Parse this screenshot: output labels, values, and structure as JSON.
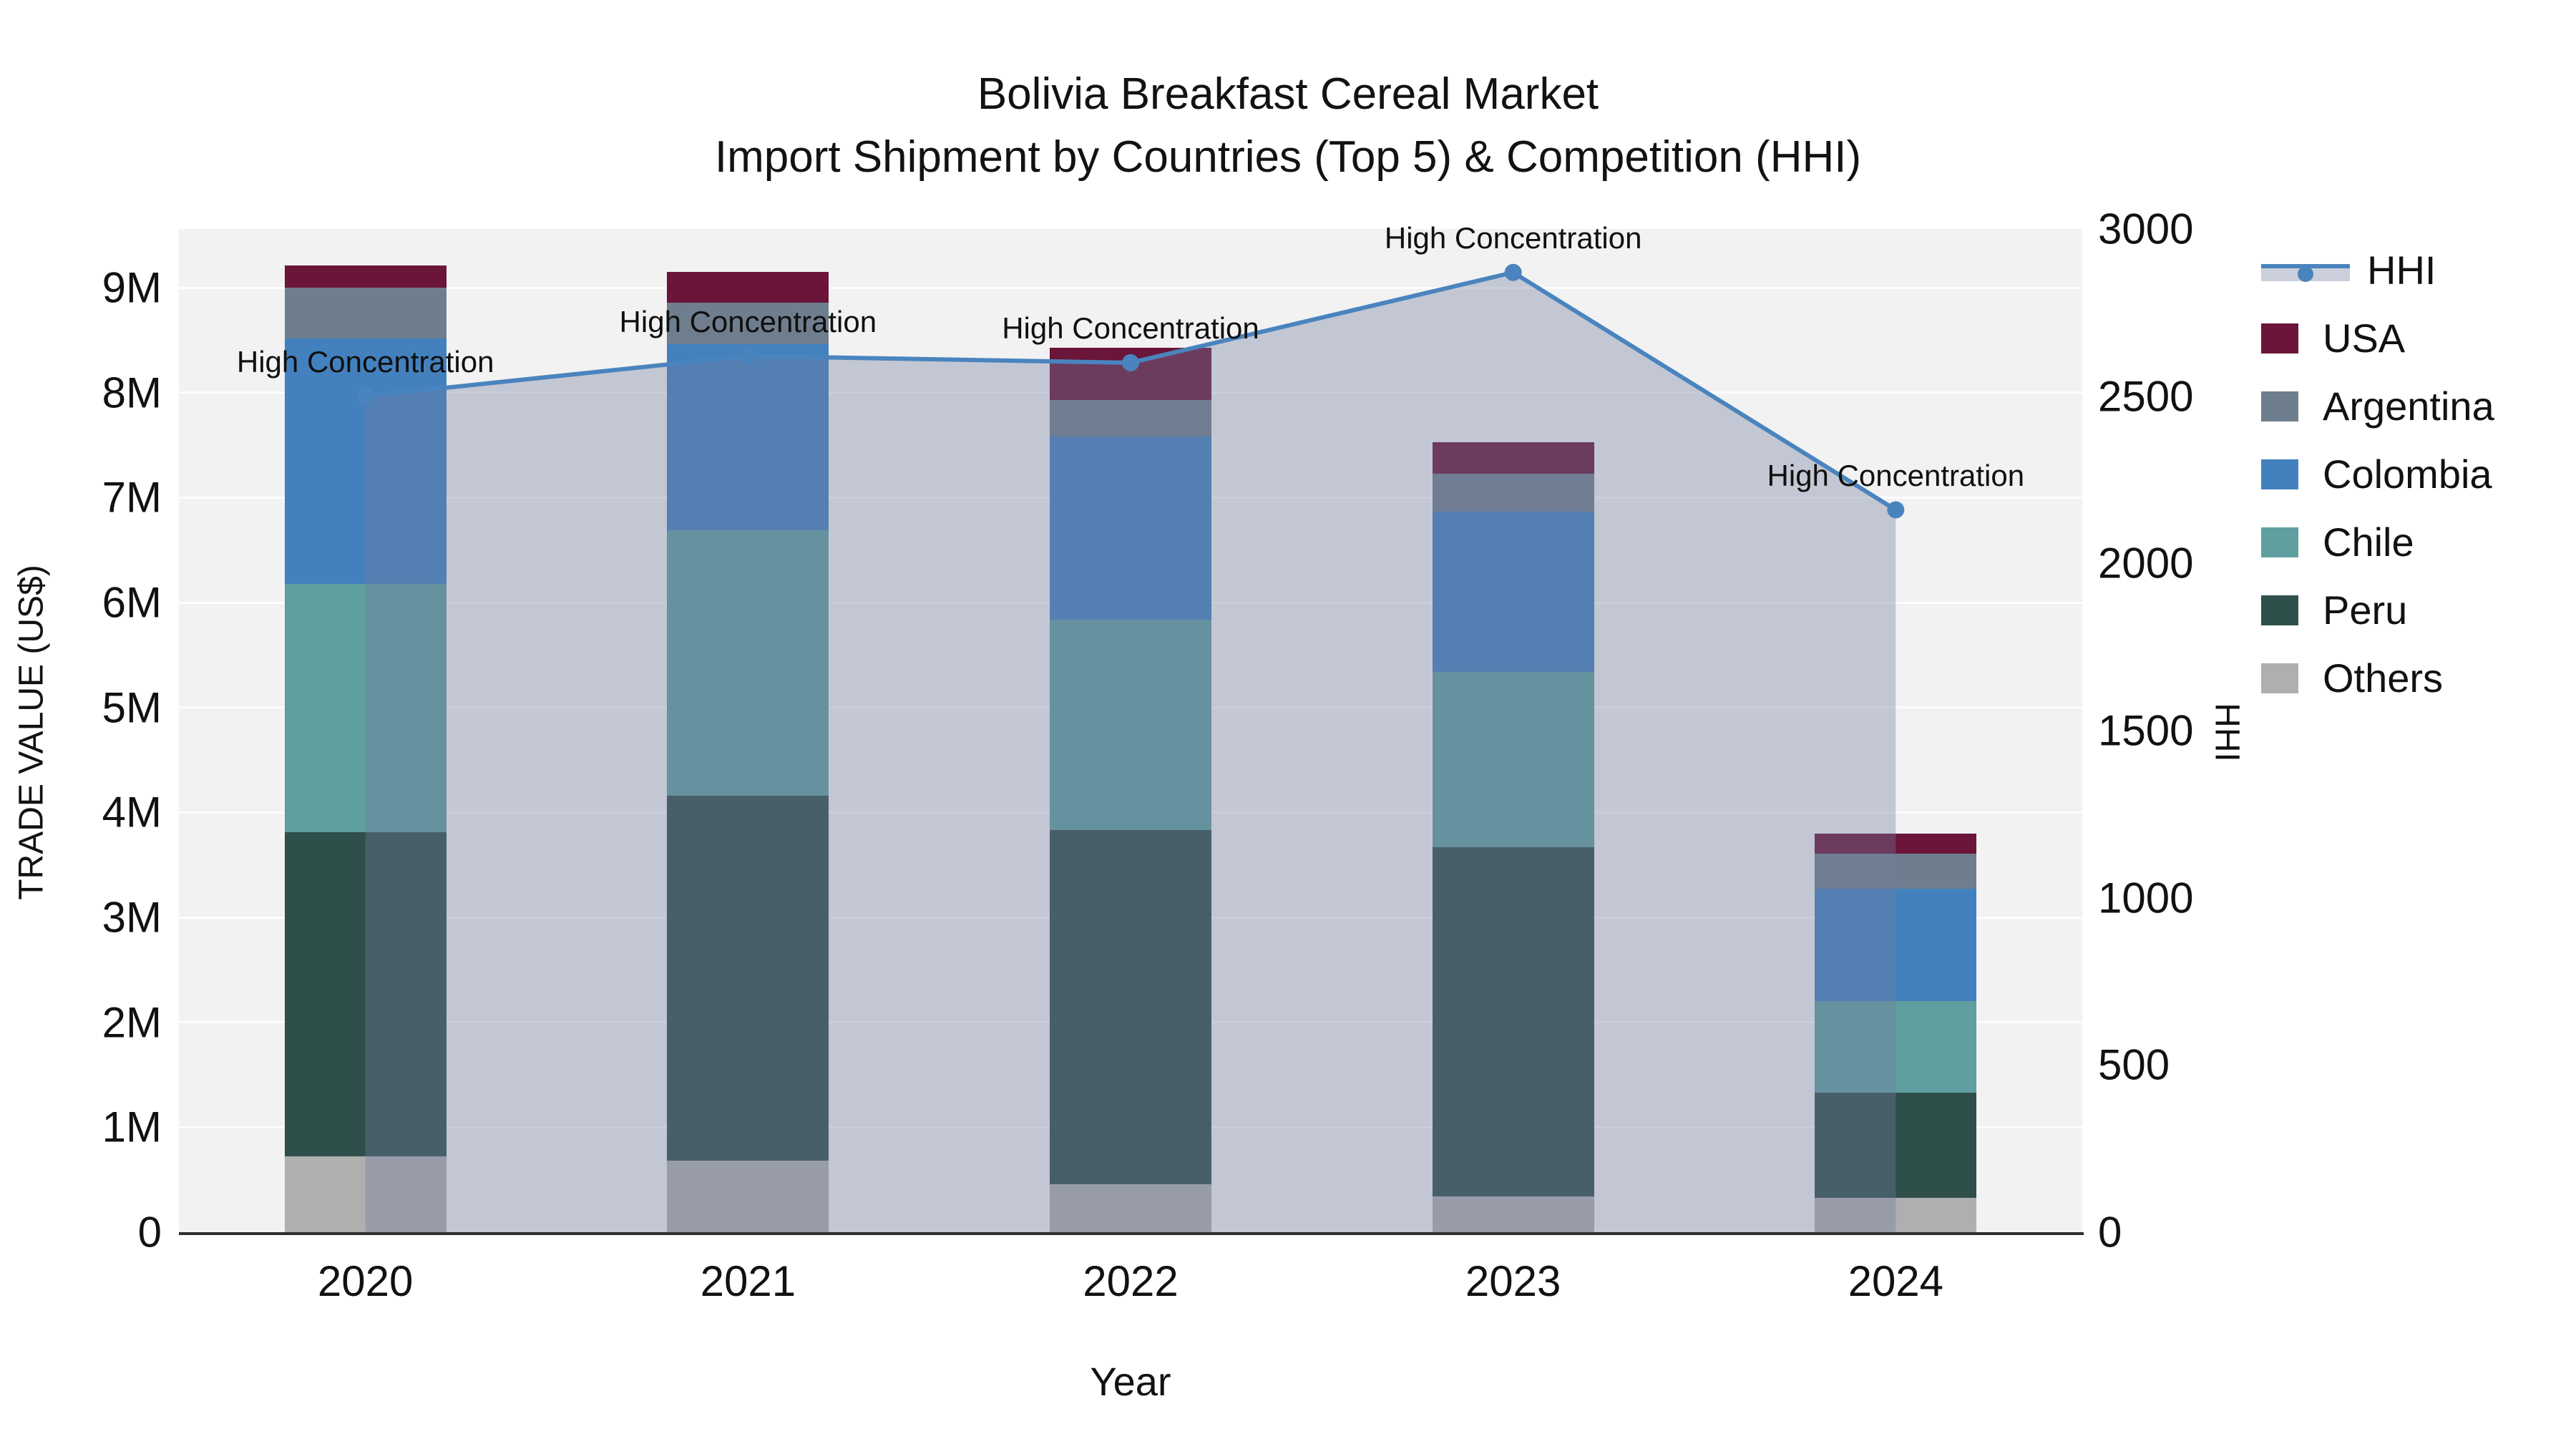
{
  "title": {
    "line1": "Bolivia Breakfast Cereal Market",
    "line2": "Import Shipment by Countries (Top 5) & Competition (HHI)"
  },
  "colors": {
    "plot_background": "#f2f2f2",
    "gridline": "#ffffff",
    "axis_line": "#2e2e2e",
    "hhi_line": "#4a84be",
    "hhi_area_fill": "rgba(113,125,156,0.37)",
    "usa": "#6a1539",
    "argentina": "#6f7e8e",
    "colombia": "#4381be",
    "chile": "#5f9fa0",
    "peru": "#2f4f4b",
    "others": "#afafb0"
  },
  "chart_data": {
    "type": "bar",
    "subtype": "stacked bars with overlaid line (secondary axis) and shaded area fill",
    "categories": [
      "2020",
      "2021",
      "2022",
      "2023",
      "2024"
    ],
    "series": [
      {
        "name": "Others",
        "color": "#afafb0",
        "values": [
          720000,
          680000,
          460000,
          340000,
          330000
        ]
      },
      {
        "name": "Peru",
        "color": "#2f4f4b",
        "values": [
          3090000,
          3480000,
          3370000,
          3330000,
          1000000
        ]
      },
      {
        "name": "Chile",
        "color": "#5f9fa0",
        "values": [
          2370000,
          2530000,
          2010000,
          1670000,
          870000
        ]
      },
      {
        "name": "Colombia",
        "color": "#4381be",
        "values": [
          2340000,
          1770000,
          1740000,
          1530000,
          1070000
        ]
      },
      {
        "name": "Argentina",
        "color": "#6f7e8e",
        "values": [
          480000,
          400000,
          350000,
          360000,
          340000
        ]
      },
      {
        "name": "USA",
        "color": "#6a1539",
        "values": [
          210000,
          290000,
          500000,
          300000,
          190000
        ]
      }
    ],
    "bar_totals": [
      9210000,
      9150000,
      8430000,
      7530000,
      3800000
    ],
    "line_series": {
      "name": "HHI",
      "type": "line",
      "color": "#4a84be",
      "area_fill": "rgba(113,125,156,0.37)",
      "values": [
        2500,
        2620,
        2600,
        2870,
        2160
      ],
      "axis": "right"
    },
    "annotations": [
      {
        "category": "2020",
        "text": "High Concentration"
      },
      {
        "category": "2021",
        "text": "High Concentration"
      },
      {
        "category": "2022",
        "text": "High Concentration"
      },
      {
        "category": "2023",
        "text": "High Concentration"
      },
      {
        "category": "2024",
        "text": "High Concentration"
      }
    ],
    "xlabel": "Year",
    "ylabel_left": "TRADE VALUE (US$)",
    "ylabel_right": "HHI",
    "y_left_ticks": {
      "labels": [
        "0",
        "1M",
        "2M",
        "3M",
        "4M",
        "5M",
        "6M",
        "7M",
        "8M",
        "9M"
      ],
      "values": [
        0,
        1000000,
        2000000,
        3000000,
        4000000,
        5000000,
        6000000,
        7000000,
        8000000,
        9000000
      ]
    },
    "y_right_ticks": {
      "labels": [
        "0",
        "500",
        "1000",
        "1500",
        "2000",
        "2500",
        "3000"
      ],
      "values": [
        0,
        500,
        1000,
        1500,
        2000,
        2500,
        3000
      ]
    },
    "ylim_left": [
      0,
      9560000
    ],
    "ylim_right": [
      0,
      3000
    ],
    "grid": "horizontal",
    "legend_position": "right",
    "legend": [
      {
        "label": "HHI",
        "glyph": "line-marker-area",
        "color": "#4a84be"
      },
      {
        "label": "USA",
        "glyph": "swatch",
        "color": "#6a1539"
      },
      {
        "label": "Argentina",
        "glyph": "swatch",
        "color": "#6f7e8e"
      },
      {
        "label": "Colombia",
        "glyph": "swatch",
        "color": "#4381be"
      },
      {
        "label": "Chile",
        "glyph": "swatch",
        "color": "#5f9fa0"
      },
      {
        "label": "Peru",
        "glyph": "swatch",
        "color": "#2f4f4b"
      },
      {
        "label": "Others",
        "glyph": "swatch",
        "color": "#afafb0"
      }
    ]
  }
}
